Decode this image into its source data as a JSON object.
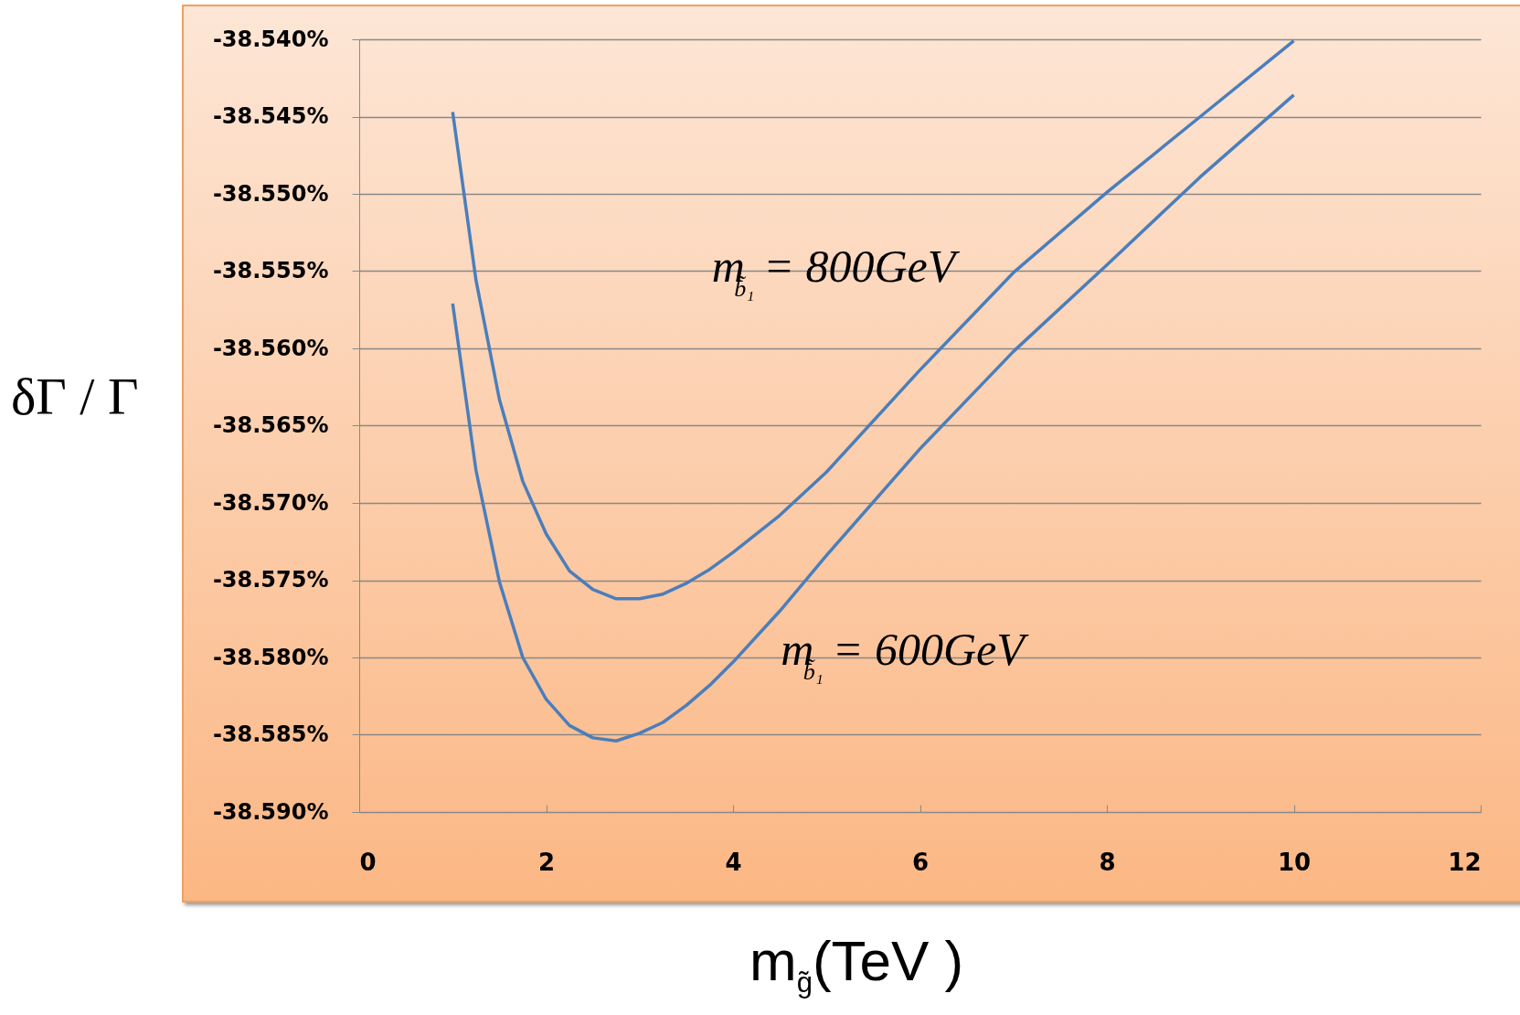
{
  "chart_data": {
    "type": "line",
    "xlabel": "m$_{g̃}$(TeV )",
    "ylabel": "δΓ / Γ",
    "xlim": [
      0,
      12
    ],
    "xticks": [
      0,
      2,
      4,
      6,
      8,
      10,
      12
    ],
    "ylim": [
      -38.59,
      -38.54
    ],
    "yticks": [
      {
        "value": -38.59,
        "label": "-38.590%"
      },
      {
        "value": -38.585,
        "label": "-38.585%"
      },
      {
        "value": -38.58,
        "label": "-38.580%"
      },
      {
        "value": -38.575,
        "label": "-38.575%"
      },
      {
        "value": -38.57,
        "label": "-38.570%"
      },
      {
        "value": -38.565,
        "label": "-38.565%"
      },
      {
        "value": -38.56,
        "label": "-38.560%"
      },
      {
        "value": -38.555,
        "label": "-38.555%"
      },
      {
        "value": -38.55,
        "label": "-38.550%"
      },
      {
        "value": -38.545,
        "label": "-38.545%"
      },
      {
        "value": -38.54,
        "label": "-38.540%"
      }
    ],
    "grid": "y",
    "marker": "none",
    "line_style": "solid",
    "series": [
      {
        "name": "m$_{b̃₁}$ = 800GeV",
        "color": "#4a7ebb",
        "x": [
          1,
          1.25,
          1.5,
          1.75,
          2,
          2.25,
          2.5,
          2.75,
          3,
          3.25,
          3.5,
          3.75,
          4,
          4.5,
          5,
          6,
          7,
          8,
          9,
          10
        ],
        "values": [
          -38.5447,
          -38.5556,
          -38.5633,
          -38.5686,
          -38.572,
          -38.5744,
          -38.5756,
          -38.5762,
          -38.5762,
          -38.5759,
          -38.5752,
          -38.5743,
          -38.5732,
          -38.5708,
          -38.568,
          -38.5614,
          -38.5551,
          -38.5499,
          -38.545,
          -38.5401
        ]
      },
      {
        "name": "m$_{b̃₁}$ = 600GeV",
        "color": "#4a7ebb",
        "x": [
          1,
          1.25,
          1.5,
          1.75,
          2,
          2.25,
          2.5,
          2.75,
          3,
          3.25,
          3.5,
          3.75,
          4,
          4.5,
          5,
          6,
          7,
          8,
          9,
          10
        ],
        "values": [
          -38.5571,
          -38.5679,
          -38.5751,
          -38.58,
          -38.5827,
          -38.5844,
          -38.5852,
          -38.5854,
          -38.5849,
          -38.5842,
          -38.5831,
          -38.5818,
          -38.5803,
          -38.577,
          -38.5734,
          -38.5665,
          -38.5602,
          -38.5546,
          -38.5489,
          -38.5436
        ]
      }
    ]
  }
}
